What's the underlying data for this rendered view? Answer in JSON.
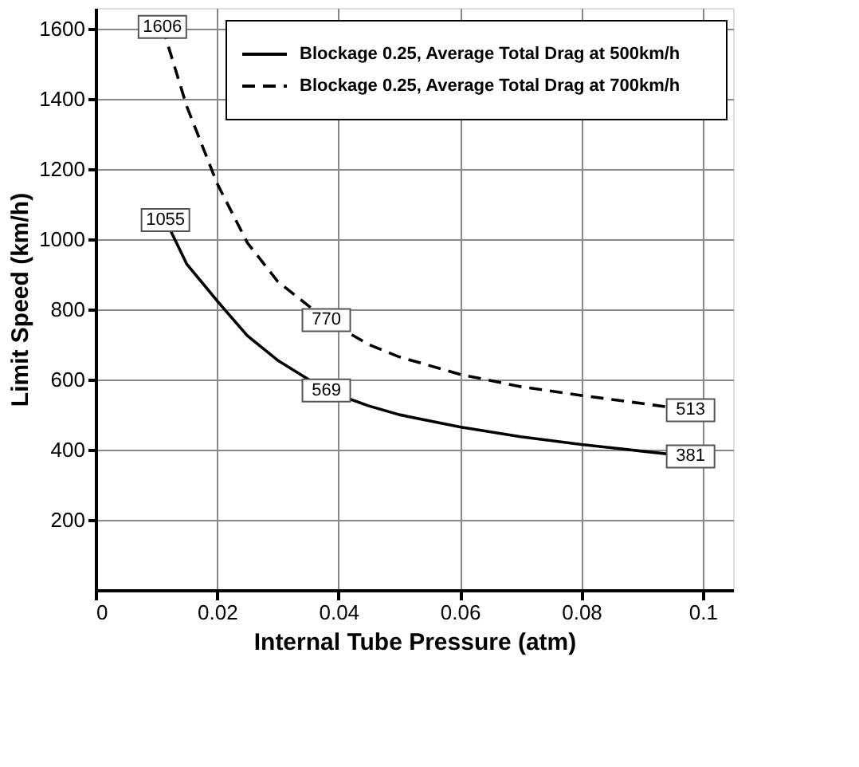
{
  "chart_data": {
    "type": "line",
    "xlabel": "Internal Tube Pressure (atm)",
    "ylabel": "Limit Speed (km/h)",
    "xlim": [
      0,
      0.105
    ],
    "xticks": [
      0,
      0.02,
      0.04,
      0.06,
      0.08,
      {
        "value": 0.1,
        "label": "0.1"
      }
    ],
    "ylim": [
      0,
      1660
    ],
    "yticks": [
      200,
      400,
      600,
      800,
      1000,
      1200,
      1400,
      1600
    ],
    "grid": true,
    "legend": "top right",
    "series": [
      {
        "name": "Blockage 0.25, Average Total Drag at 500km/h",
        "color": "#000000",
        "line_style": "solid",
        "x": [
          0.0115,
          0.015,
          0.02,
          0.025,
          0.03,
          0.038,
          0.045,
          0.05,
          0.06,
          0.07,
          0.08,
          0.09,
          0.098
        ],
        "values": [
          1055,
          930,
          825,
          725,
          655,
          569,
          525,
          500,
          465,
          437,
          415,
          396,
          381
        ],
        "value_labels": [
          "1055",
          null,
          null,
          null,
          null,
          "569",
          null,
          null,
          null,
          null,
          null,
          null,
          "381"
        ]
      },
      {
        "name": "Blockage 0.25, Average Total Drag at 700km/h",
        "color": "#000000",
        "line_style": "dashed",
        "x": [
          0.011,
          0.015,
          0.02,
          0.025,
          0.03,
          0.038,
          0.045,
          0.05,
          0.06,
          0.07,
          0.08,
          0.09,
          0.098
        ],
        "values": [
          1606,
          1380,
          1160,
          990,
          880,
          770,
          700,
          665,
          615,
          580,
          555,
          532,
          513
        ],
        "value_labels": [
          "1606",
          null,
          null,
          null,
          null,
          "770",
          null,
          null,
          null,
          null,
          null,
          null,
          "513"
        ]
      }
    ]
  }
}
